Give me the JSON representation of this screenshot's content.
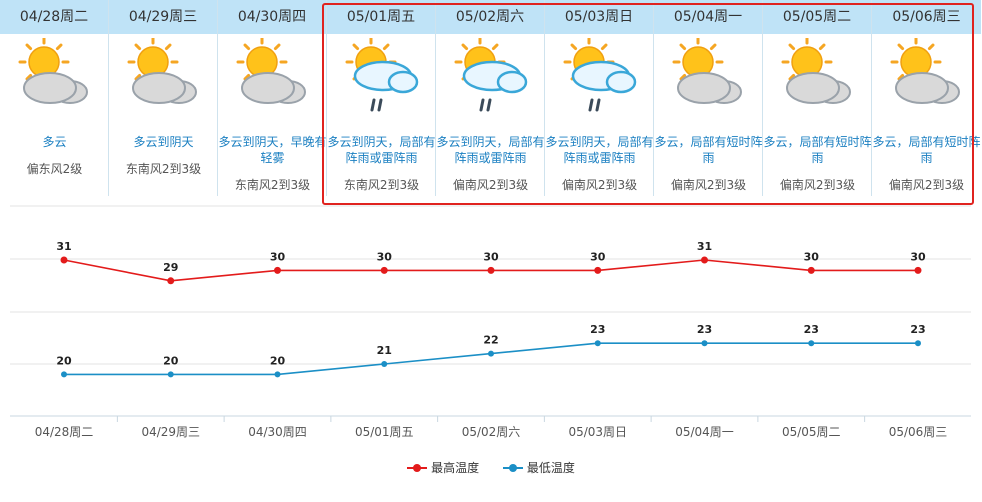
{
  "days": [
    {
      "date": "04/28周二",
      "desc": "多云",
      "wind": "偏东风2级",
      "rain": false
    },
    {
      "date": "04/29周三",
      "desc": "多云到阴天",
      "wind": "东南风2到3级",
      "rain": false
    },
    {
      "date": "04/30周四",
      "desc": "多云到阴天，早晚有轻雾",
      "wind": "东南风2到3级",
      "rain": false
    },
    {
      "date": "05/01周五",
      "desc": "多云到阴天，局部有阵雨或雷阵雨",
      "wind": "东南风2到3级",
      "rain": true
    },
    {
      "date": "05/02周六",
      "desc": "多云到阴天，局部有阵雨或雷阵雨",
      "wind": "偏南风2到3级",
      "rain": true
    },
    {
      "date": "05/03周日",
      "desc": "多云到阴天，局部有阵雨或雷阵雨",
      "wind": "偏南风2到3级",
      "rain": true
    },
    {
      "date": "05/04周一",
      "desc": "多云，局部有短时阵雨",
      "wind": "偏南风2到3级",
      "rain": false
    },
    {
      "date": "05/05周二",
      "desc": "多云，局部有短时阵雨",
      "wind": "偏南风2到3级",
      "rain": false
    },
    {
      "date": "05/06周三",
      "desc": "多云，局部有短时阵雨",
      "wind": "偏南风2到3级",
      "rain": false
    }
  ],
  "colors": {
    "high": "#e31b1b",
    "low": "#1b8fc6",
    "highlight": "#e0231f",
    "header_bg": "#bfe3f7"
  },
  "chart_data": {
    "type": "line",
    "categories": [
      "04/28周二",
      "04/29周三",
      "04/30周四",
      "05/01周五",
      "05/02周六",
      "05/03周日",
      "05/04周一",
      "05/05周二",
      "05/06周三"
    ],
    "series": [
      {
        "name": "最高温度",
        "values": [
          31,
          29,
          30,
          30,
          30,
          30,
          31,
          30,
          30
        ],
        "color": "#e31b1b"
      },
      {
        "name": "最低温度",
        "values": [
          20,
          20,
          20,
          21,
          22,
          23,
          23,
          23,
          23
        ],
        "color": "#1b8fc6"
      }
    ],
    "legend": "bottom-center",
    "grid": true
  },
  "legend": {
    "high": "最高温度",
    "low": "最低温度"
  }
}
